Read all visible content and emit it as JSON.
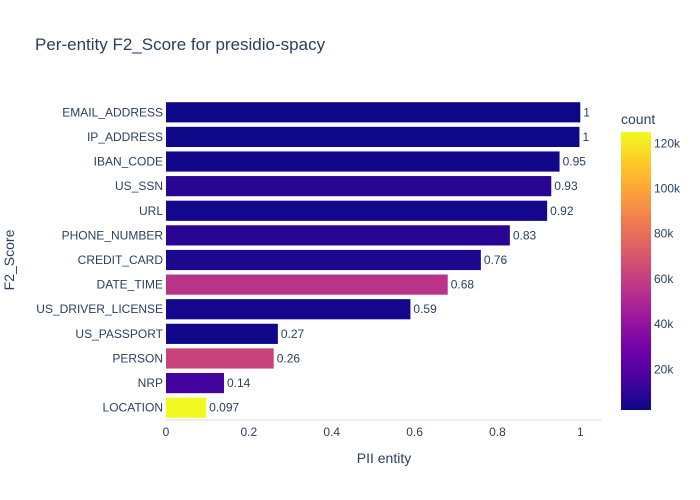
{
  "chart_data": {
    "type": "bar",
    "orientation": "horizontal",
    "title": "Per-entity F2_Score for presidio-spacy",
    "xlabel": "PII entity",
    "ylabel": "F2_Score",
    "xlim": [
      0,
      1.05
    ],
    "x_ticks": [
      "0",
      "0.2",
      "0.4",
      "0.6",
      "0.8",
      "1"
    ],
    "x_tick_values": [
      0,
      0.2,
      0.4,
      0.6,
      0.8,
      1
    ],
    "categories": [
      "EMAIL_ADDRESS",
      "IP_ADDRESS",
      "IBAN_CODE",
      "US_SSN",
      "URL",
      "PHONE_NUMBER",
      "CREDIT_CARD",
      "DATE_TIME",
      "US_DRIVER_LICENSE",
      "US_PASSPORT",
      "PERSON",
      "NRP",
      "LOCATION"
    ],
    "values": [
      1,
      0.998,
      0.95,
      0.93,
      0.92,
      0.83,
      0.76,
      0.68,
      0.59,
      0.27,
      0.26,
      0.14,
      0.097
    ],
    "value_labels": [
      "1",
      "1",
      "0.95",
      "0.93",
      "0.92",
      "0.83",
      "0.76",
      "0.68",
      "0.59",
      "0.27",
      "0.26",
      "0.14",
      "0.097"
    ],
    "counts": [
      2000,
      2000,
      3000,
      8000,
      4000,
      9000,
      5000,
      55000,
      4000,
      3000,
      62000,
      15000,
      125000
    ],
    "colorbar": {
      "title": "count",
      "min": 2000,
      "max": 125000,
      "ticks": [
        "20k",
        "40k",
        "60k",
        "80k",
        "100k",
        "120k"
      ],
      "tick_values": [
        20000,
        40000,
        60000,
        80000,
        100000,
        120000
      ],
      "colorscale": [
        "#0d0887",
        "#46039f",
        "#7201a8",
        "#9c179e",
        "#bd3786",
        "#d8576b",
        "#ed7953",
        "#fb9f3a",
        "#fdca26",
        "#f0f921"
      ]
    },
    "grid": false,
    "legend": "colorbar-right"
  }
}
